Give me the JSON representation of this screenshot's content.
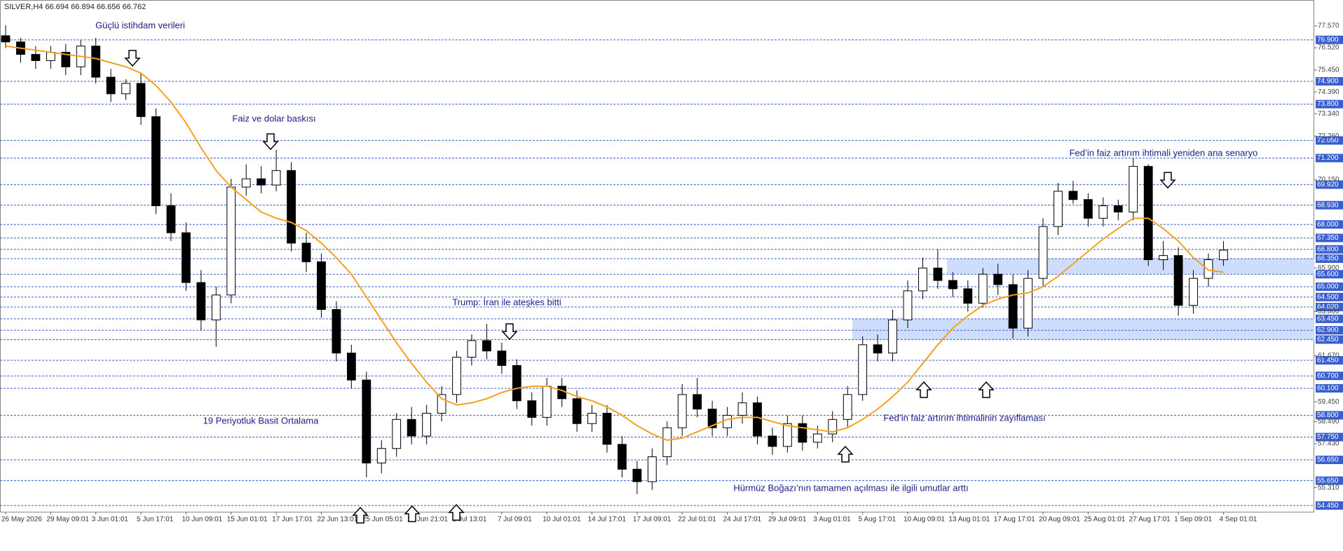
{
  "chart_data": {
    "type": "candlestick",
    "header": "SILVER,H4  66.694 66.894 66.656 66.762",
    "ylim": [
      54.15,
      78.72
    ],
    "categories": [
      "26 May 2026",
      null,
      null,
      "29 May 09:01",
      null,
      null,
      "3 Jun 01:01",
      null,
      null,
      "5 Jun 17:01",
      null,
      null,
      "10 Jun 09:01",
      null,
      null,
      "15 Jun 01:01",
      null,
      null,
      "17 Jun 17:01",
      null,
      null,
      "22 Jun 13:01",
      null,
      null,
      "25 Jun 05:01",
      null,
      null,
      "29 Jun 21:01",
      null,
      null,
      "2 Jul 13:01",
      null,
      null,
      "7 Jul 09:01",
      null,
      null,
      "10 Jul 01:01",
      null,
      null,
      "14 Jul 17:01",
      null,
      null,
      "17 Jul 09:01",
      null,
      null,
      "22 Jul 01:01",
      null,
      null,
      "24 Jul 17:01",
      null,
      null,
      "29 Jul 09:01",
      null,
      null,
      "3 Aug 01:01",
      null,
      null,
      "5 Aug 17:01",
      null,
      null,
      "10 Aug 09:01",
      null,
      null,
      "13 Aug 01:01",
      null,
      null,
      "17 Aug 17:01",
      null,
      null,
      "20 Aug 09:01",
      null,
      null,
      "25 Aug 01:01",
      null,
      null,
      "27 Aug 17:01",
      null,
      null,
      "1 Sep 09:01",
      null,
      null,
      "4 Sep 01:01"
    ],
    "open": [
      77.1,
      76.8,
      76.2,
      75.9,
      76.3,
      75.6,
      76.6,
      75.1,
      74.3,
      74.8,
      73.2,
      68.9,
      67.6,
      65.2,
      63.4,
      64.6,
      69.8,
      70.2,
      69.9,
      70.6,
      67.1,
      66.2,
      63.9,
      61.8,
      60.5,
      56.5,
      57.2,
      58.6,
      57.8,
      58.9,
      59.8,
      61.6,
      62.4,
      61.9,
      61.2,
      59.5,
      58.7,
      60.2,
      59.6,
      58.4,
      58.9,
      57.4,
      56.2,
      55.6,
      56.8,
      58.2,
      59.8,
      59.1,
      58.2,
      58.8,
      59.4,
      57.8,
      57.3,
      58.4,
      57.5,
      57.9,
      58.6,
      59.8,
      62.2,
      61.8,
      63.4,
      64.8,
      65.9,
      65.3,
      64.9,
      64.2,
      65.6,
      65.1,
      63.0,
      65.4,
      67.9,
      69.6,
      69.2,
      68.3,
      68.9,
      68.6,
      70.8,
      66.3,
      66.5,
      64.1,
      65.4,
      66.3
    ],
    "high": [
      77.6,
      77.0,
      76.6,
      76.6,
      76.7,
      76.9,
      77.0,
      75.5,
      75.0,
      75.3,
      73.6,
      69.5,
      68.1,
      65.8,
      65.0,
      70.2,
      70.9,
      70.8,
      71.6,
      71.0,
      67.6,
      66.6,
      64.3,
      62.2,
      60.9,
      57.6,
      58.9,
      59.2,
      59.3,
      60.2,
      61.9,
      62.7,
      63.2,
      62.3,
      61.5,
      59.9,
      60.6,
      60.6,
      60.0,
      59.3,
      59.3,
      57.8,
      56.6,
      57.2,
      58.5,
      60.3,
      60.6,
      59.5,
      59.2,
      59.9,
      59.7,
      58.2,
      58.8,
      58.8,
      58.3,
      59.0,
      60.2,
      62.6,
      62.7,
      63.9,
      65.3,
      66.4,
      66.8,
      65.7,
      65.3,
      65.9,
      66.1,
      65.6,
      65.8,
      68.3,
      70.0,
      70.1,
      69.5,
      69.3,
      69.2,
      71.2,
      70.9,
      67.2,
      66.9,
      65.8,
      66.6,
      67.2
    ],
    "low": [
      76.5,
      75.8,
      75.5,
      75.5,
      75.2,
      75.2,
      74.8,
      73.9,
      74.0,
      72.8,
      68.5,
      67.2,
      64.8,
      62.9,
      62.1,
      64.2,
      69.4,
      69.5,
      69.6,
      66.7,
      65.7,
      63.5,
      61.4,
      60.1,
      55.8,
      56.0,
      56.8,
      57.4,
      57.4,
      58.5,
      59.4,
      61.2,
      61.5,
      60.8,
      59.1,
      58.3,
      58.3,
      59.2,
      58.0,
      58.0,
      57.0,
      55.8,
      55.0,
      55.2,
      56.4,
      57.8,
      58.7,
      57.8,
      57.8,
      58.4,
      57.4,
      56.9,
      57.0,
      57.1,
      57.2,
      57.5,
      58.2,
      59.5,
      61.4,
      61.4,
      63.0,
      64.4,
      64.9,
      64.5,
      63.8,
      64.0,
      64.6,
      62.5,
      62.6,
      65.0,
      67.5,
      69.0,
      67.9,
      67.9,
      68.2,
      68.2,
      66.0,
      65.8,
      63.6,
      63.7,
      65.0,
      66.0
    ],
    "close": [
      76.8,
      76.2,
      75.9,
      76.3,
      75.6,
      76.6,
      75.1,
      74.3,
      74.8,
      73.2,
      68.9,
      67.6,
      65.2,
      63.4,
      64.6,
      69.8,
      70.2,
      69.9,
      70.6,
      67.1,
      66.2,
      63.9,
      61.8,
      60.5,
      56.5,
      57.2,
      58.6,
      57.8,
      58.9,
      59.8,
      61.6,
      62.4,
      61.9,
      61.2,
      59.5,
      58.7,
      60.2,
      59.6,
      58.4,
      58.9,
      57.4,
      56.2,
      55.6,
      56.8,
      58.2,
      59.8,
      59.1,
      58.2,
      58.8,
      59.4,
      57.8,
      57.3,
      58.4,
      57.5,
      57.9,
      58.6,
      59.8,
      62.2,
      61.8,
      63.4,
      64.8,
      65.9,
      65.3,
      64.9,
      64.2,
      65.6,
      65.1,
      63.0,
      65.4,
      67.9,
      69.6,
      69.2,
      68.3,
      68.9,
      68.6,
      70.8,
      66.3,
      66.5,
      64.1,
      65.4,
      66.3,
      66.76
    ],
    "sma": {
      "name": "19 Periyotluk Basit Ortalama",
      "color": "#f5a020",
      "values": [
        76.6,
        76.5,
        76.4,
        76.3,
        76.2,
        76.1,
        76.0,
        75.8,
        75.6,
        75.3,
        74.7,
        73.9,
        72.9,
        71.7,
        70.6,
        69.8,
        69.2,
        68.6,
        68.3,
        68.1,
        67.7,
        67.1,
        66.4,
        65.6,
        64.5,
        63.4,
        62.3,
        61.3,
        60.4,
        59.6,
        59.3,
        59.4,
        59.6,
        59.9,
        60.1,
        60.2,
        60.2,
        60.0,
        59.7,
        59.5,
        59.2,
        58.8,
        58.3,
        57.9,
        57.6,
        57.7,
        58.0,
        58.3,
        58.6,
        58.7,
        58.7,
        58.5,
        58.3,
        58.2,
        58.1,
        58.0,
        58.2,
        58.6,
        59.1,
        59.7,
        60.4,
        61.3,
        62.2,
        63.0,
        63.6,
        64.1,
        64.4,
        64.6,
        64.7,
        65.0,
        65.5,
        66.1,
        66.7,
        67.3,
        67.8,
        68.3,
        68.3,
        67.8,
        67.2,
        66.4,
        65.8,
        65.7
      ]
    },
    "yticks": [
      {
        "value": 77.57,
        "label": "77.570"
      },
      {
        "value": 76.52,
        "label": "76.520"
      },
      {
        "value": 75.45,
        "label": "75.450"
      },
      {
        "value": 74.39,
        "label": "74.390"
      },
      {
        "value": 73.34,
        "label": "73.340"
      },
      {
        "value": 72.26,
        "label": "72.260"
      },
      {
        "value": 70.15,
        "label": "70.150"
      },
      {
        "value": 65.9,
        "label": "65.900"
      },
      {
        "value": 63.8,
        "label": "63.800"
      },
      {
        "value": 61.67,
        "label": "61.670"
      },
      {
        "value": 59.45,
        "label": "59.450"
      },
      {
        "value": 58.49,
        "label": "58.490"
      },
      {
        "value": 57.43,
        "label": "57.430"
      },
      {
        "value": 55.31,
        "label": "55.310"
      }
    ],
    "levels": [
      {
        "value": 76.9,
        "label": "76.900"
      },
      {
        "value": 74.9,
        "label": "74.900"
      },
      {
        "value": 73.8,
        "label": "73.800"
      },
      {
        "value": 72.05,
        "label": "72.050"
      },
      {
        "value": 71.2,
        "label": "71.200"
      },
      {
        "value": 69.92,
        "label": "69.920"
      },
      {
        "value": 68.93,
        "label": "68.930"
      },
      {
        "value": 68,
        "label": "68.000"
      },
      {
        "value": 67.35,
        "label": "67.350"
      },
      {
        "value": 66.8,
        "label": "66.800"
      },
      {
        "value": 66.35,
        "label": "66.350"
      },
      {
        "value": 65.6,
        "label": "65.600"
      },
      {
        "value": 65,
        "label": "65.000"
      },
      {
        "value": 64.5,
        "label": "64.500"
      },
      {
        "value": 64.02,
        "label": "64.020"
      },
      {
        "value": 63.45,
        "label": "63.450"
      },
      {
        "value": 62.9,
        "label": "62.900"
      },
      {
        "value": 62.45,
        "label": "62.450"
      },
      {
        "value": 61.45,
        "label": "61.450"
      },
      {
        "value": 60.7,
        "label": "60.700"
      },
      {
        "value": 60.1,
        "label": "60.100"
      },
      {
        "value": 58.8,
        "label": "58.800"
      },
      {
        "value": 57.75,
        "label": "57.750"
      },
      {
        "value": 56.65,
        "label": "56.650"
      },
      {
        "value": 55.65,
        "label": "55.650"
      },
      {
        "value": 54.45,
        "label": "54.450"
      }
    ],
    "zones": [
      [
        65.6,
        66.35
      ],
      [
        62.45,
        63.45
      ]
    ],
    "annotations": [
      "Güçlü istihdam verileri",
      "Faiz ve dolar baskısı",
      "Trump: İran ile ateşkes bitti",
      "Hürmüz Boğazı’nın tamamen açılması ile ilgili umutlar arttı",
      "Fed’in faiz artırım ihtimalinin zayıflaması",
      "Fed’in faiz artırım ihtimali yeniden ana senaryo"
    ]
  }
}
